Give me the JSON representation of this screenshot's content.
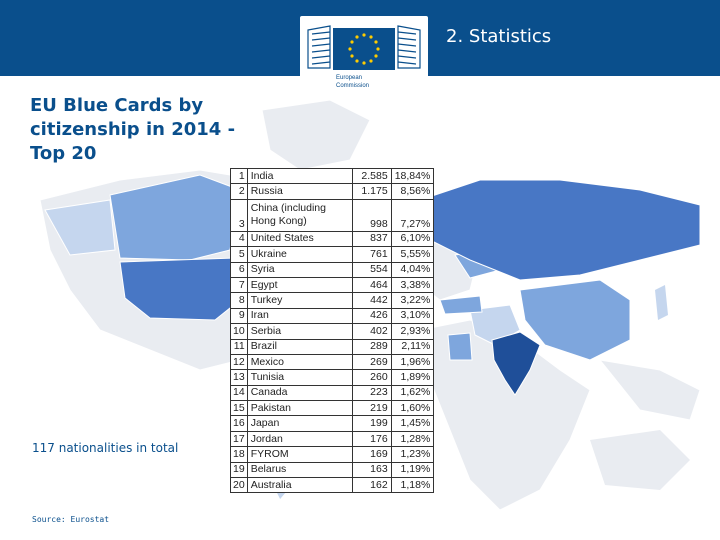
{
  "header": {
    "section_title": "2. Statistics",
    "logo_line1": "European",
    "logo_line2": "Commission"
  },
  "page": {
    "title": "EU Blue Cards by citizenship in 2014 - Top 20",
    "nationalities_note": "117 nationalities in total",
    "source": "Source: Eurostat"
  },
  "table": {
    "rows": [
      {
        "rank": "1",
        "country": "India",
        "count": "2.585",
        "share": "18,84%"
      },
      {
        "rank": "2",
        "country": "Russia",
        "count": "1.175",
        "share": "8,56%"
      },
      {
        "rank": "3",
        "country": "China (including Hong Kong)",
        "count": "998",
        "share": "7,27%"
      },
      {
        "rank": "4",
        "country": "United States",
        "count": "837",
        "share": "6,10%"
      },
      {
        "rank": "5",
        "country": "Ukraine",
        "count": "761",
        "share": "5,55%"
      },
      {
        "rank": "6",
        "country": "Syria",
        "count": "554",
        "share": "4,04%"
      },
      {
        "rank": "7",
        "country": "Egypt",
        "count": "464",
        "share": "3,38%"
      },
      {
        "rank": "8",
        "country": "Turkey",
        "count": "442",
        "share": "3,22%"
      },
      {
        "rank": "9",
        "country": "Iran",
        "count": "426",
        "share": "3,10%"
      },
      {
        "rank": "10",
        "country": "Serbia",
        "count": "402",
        "share": "2,93%"
      },
      {
        "rank": "11",
        "country": "Brazil",
        "count": "289",
        "share": "2,11%"
      },
      {
        "rank": "12",
        "country": "Mexico",
        "count": "269",
        "share": "1,96%"
      },
      {
        "rank": "13",
        "country": "Tunisia",
        "count": "260",
        "share": "1,89%"
      },
      {
        "rank": "14",
        "country": "Canada",
        "count": "223",
        "share": "1,62%"
      },
      {
        "rank": "15",
        "country": "Pakistan",
        "count": "219",
        "share": "1,60%"
      },
      {
        "rank": "16",
        "country": "Japan",
        "count": "199",
        "share": "1,45%"
      },
      {
        "rank": "17",
        "country": "Jordan",
        "count": "176",
        "share": "1,28%"
      },
      {
        "rank": "18",
        "country": "FYROM",
        "count": "169",
        "share": "1,23%"
      },
      {
        "rank": "19",
        "country": "Belarus",
        "count": "163",
        "share": "1,19%"
      },
      {
        "rank": "20",
        "country": "Australia",
        "count": "162",
        "share": "1,18%"
      }
    ]
  },
  "colors": {
    "brand_blue": "#0a4f8c",
    "map_light": "#e9ecf1",
    "map_pale_blue": "#c5d6ee",
    "map_mid_blue": "#7ea6dd",
    "map_blue": "#4877c5",
    "map_dark_blue": "#1f4f99",
    "eu_star": "#ffcc00"
  },
  "icons": {
    "logo": "european-commission-logo",
    "stars": "eu-stars-icon"
  }
}
